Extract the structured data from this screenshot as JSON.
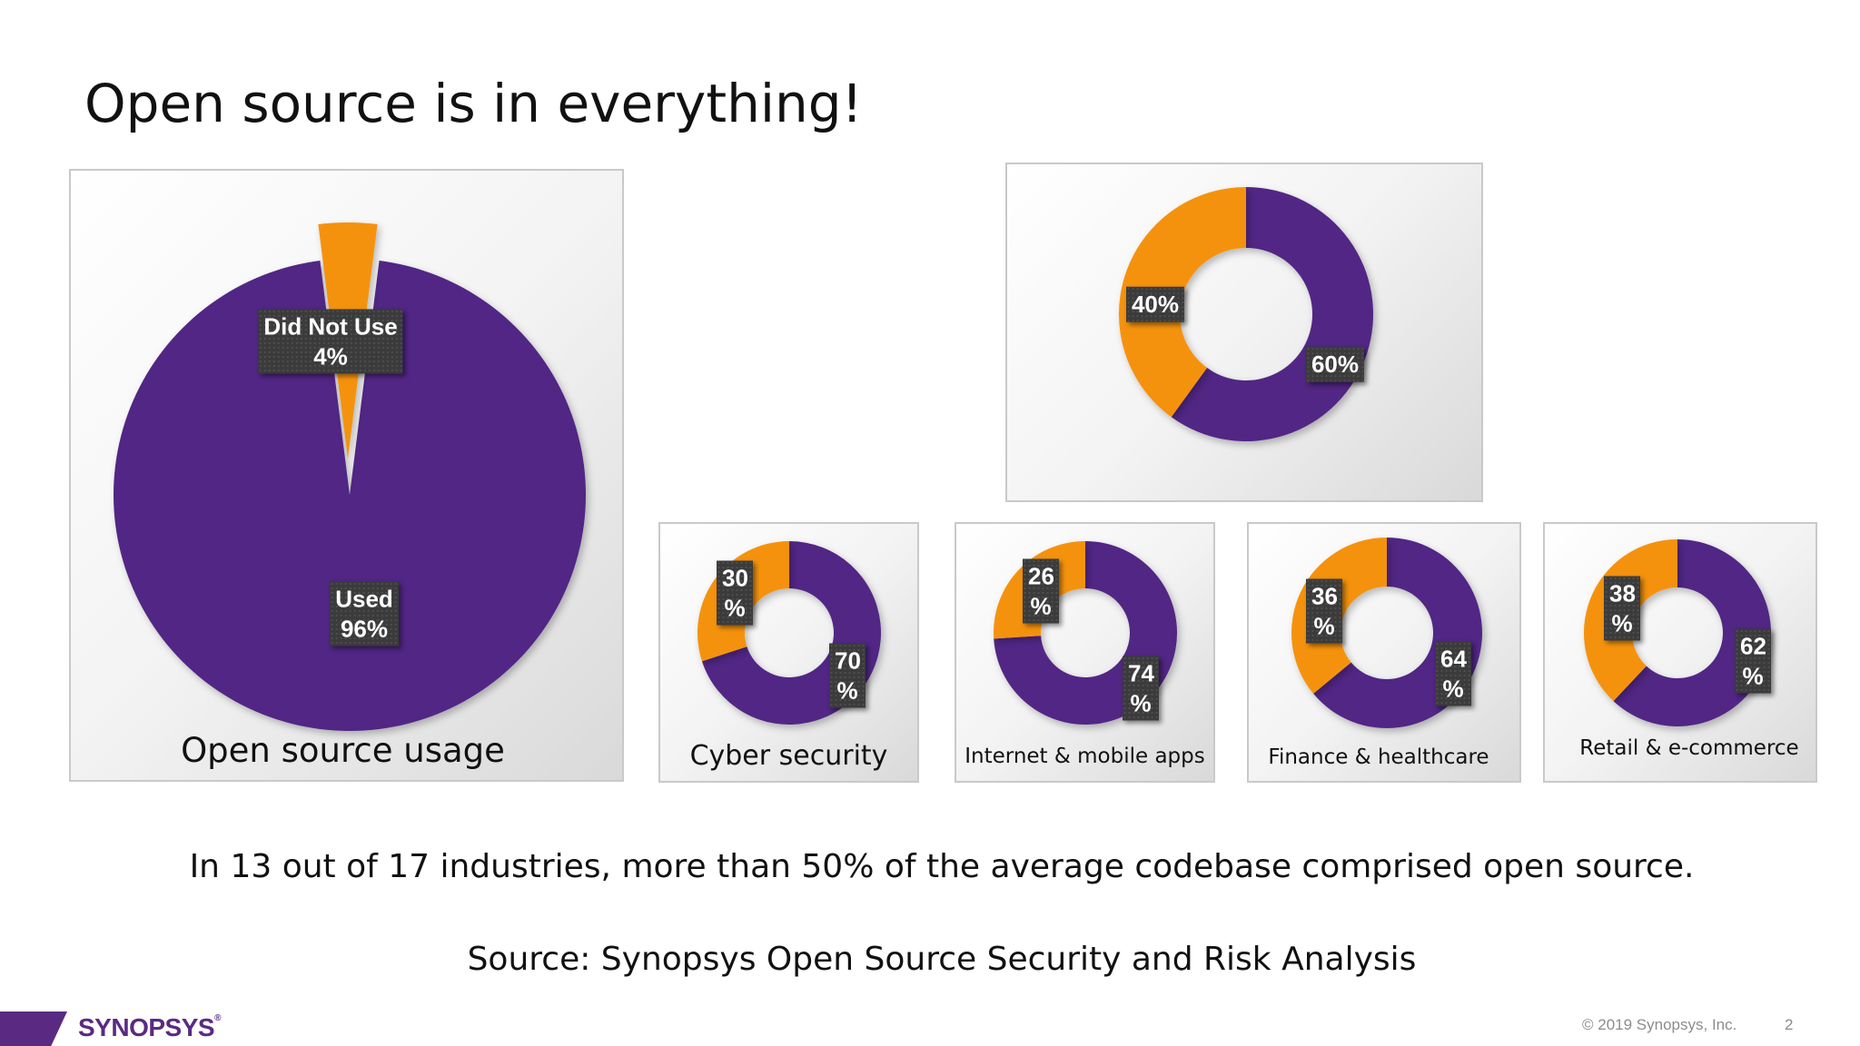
{
  "slide": {
    "title": "Open source is in everything!",
    "statement": "In 13 out of 17 industries, more than 50% of the average codebase comprised open source.",
    "source": "Source: Synopsys Open Source Security and Risk Analysis",
    "copyright": "© 2019 Synopsys, Inc.",
    "page_number": "2",
    "logo": {
      "text": "SYNOPSYS",
      "mark": "®"
    }
  },
  "colors": {
    "purple": "#512685",
    "orange": "#f5920f",
    "callout_bg": "#3b3b3b",
    "logo": "#5a2a82"
  },
  "chart_data": [
    {
      "type": "pie",
      "title": "Open source usage",
      "slices": [
        {
          "label": "Did Not Use",
          "pct": "4%",
          "value": 4,
          "color": "#f5920f",
          "exploded": true
        },
        {
          "label": "Used",
          "pct": "96%",
          "value": 96,
          "color": "#512685"
        }
      ]
    },
    {
      "type": "pie",
      "title": "",
      "slices": [
        {
          "label": "",
          "pct": "60%",
          "value": 60,
          "color": "#512685"
        },
        {
          "label": "",
          "pct": "40%",
          "value": 40,
          "color": "#f5920f"
        }
      ]
    },
    {
      "type": "pie",
      "title": "Cyber security",
      "slices": [
        {
          "label": "",
          "pct": "70 %",
          "value": 70,
          "color": "#512685"
        },
        {
          "label": "",
          "pct": "30 %",
          "value": 30,
          "color": "#f5920f"
        }
      ]
    },
    {
      "type": "pie",
      "title": "Internet & mobile apps",
      "slices": [
        {
          "label": "",
          "pct": "74 %",
          "value": 74,
          "color": "#512685"
        },
        {
          "label": "",
          "pct": "26 %",
          "value": 26,
          "color": "#f5920f"
        }
      ]
    },
    {
      "type": "pie",
      "title": "Finance & healthcare",
      "slices": [
        {
          "label": "",
          "pct": "64 %",
          "value": 64,
          "color": "#512685"
        },
        {
          "label": "",
          "pct": "36 %",
          "value": 36,
          "color": "#f5920f"
        }
      ]
    },
    {
      "type": "pie",
      "title": "Retail & e-commerce",
      "slices": [
        {
          "label": "",
          "pct": "62 %",
          "value": 62,
          "color": "#512685"
        },
        {
          "label": "",
          "pct": "38 %",
          "value": 38,
          "color": "#f5920f"
        }
      ]
    }
  ]
}
